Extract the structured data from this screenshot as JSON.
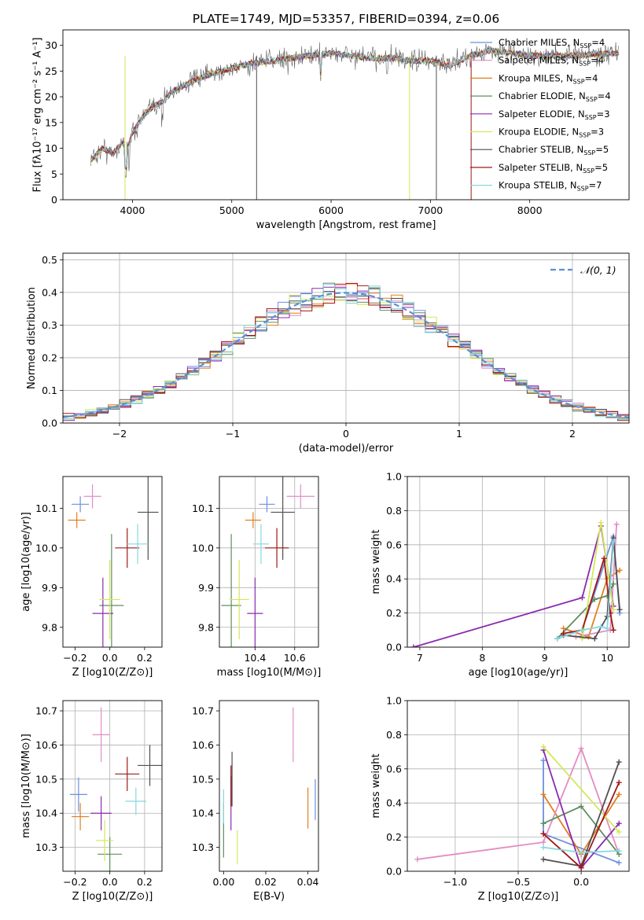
{
  "figure_title": "PLATE=1749, MJD=53357, FIBERID=0394, z=0.06",
  "series_colors": [
    "#6b8fe0",
    "#e07f1f",
    "#e38cc4",
    "#5f8f5f",
    "#8a2bb0",
    "#d3e85a",
    "#4f4f4f",
    "#a01818",
    "#86d8e0"
  ],
  "chart_data": [
    {
      "type": "line",
      "title": "PLATE=1749, MJD=53357, FIBERID=0394, z=0.06",
      "xlabel": "wavelength [Angstrom, rest frame]",
      "ylabel": "Flux [fλ10⁻¹⁷ erg cm⁻² s⁻¹ A⁻¹]",
      "xlim": [
        3300,
        9000
      ],
      "ylim": [
        0,
        33
      ],
      "xticks": [
        "4000",
        "5000",
        "6000",
        "7000",
        "8000"
      ],
      "yticks": [
        "0",
        "5",
        "10",
        "15",
        "20",
        "25",
        "30"
      ],
      "grid": false,
      "legend_position": "right",
      "legend": [
        {
          "label": "Chabrier MILES, N_SSP=4",
          "color": "#6b8fe0"
        },
        {
          "label": "Salpeter MILES, N_SSP=4",
          "color": "#e38cc4"
        },
        {
          "label": "Kroupa MILES, N_SSP=4",
          "color": "#e07f1f"
        },
        {
          "label": "Chabrier ELODIE, N_SSP=4",
          "color": "#5f8f5f"
        },
        {
          "label": "Salpeter ELODIE, N_SSP=3",
          "color": "#8a2bb0"
        },
        {
          "label": "Kroupa ELODIE, N_SSP=3",
          "color": "#d3e85a"
        },
        {
          "label": "Chabrier STELIB, N_SSP=5",
          "color": "#4f4f4f"
        },
        {
          "label": "Salpeter STELIB, N_SSP=5",
          "color": "#a01818"
        },
        {
          "label": "Kroupa STELIB, N_SSP=7",
          "color": "#86d8e0"
        }
      ],
      "spectrum_envelope": {
        "wavelength": [
          3600,
          3700,
          3800,
          3900,
          3950,
          4000,
          4100,
          4200,
          4300,
          4400,
          4500,
          4600,
          4800,
          5000,
          5200,
          5400,
          5600,
          5800,
          6000,
          6200,
          6400,
          6600,
          6800,
          7000,
          7200,
          7400,
          7600,
          8000,
          8400,
          8900
        ],
        "flux": [
          8,
          10,
          9,
          11,
          10,
          13,
          16,
          18,
          19,
          21,
          22,
          23,
          24.5,
          25.5,
          26.5,
          27,
          27.5,
          28,
          28.5,
          28,
          27.5,
          27.5,
          27,
          27,
          26,
          28,
          29,
          28,
          28,
          28.5
        ]
      }
    },
    {
      "type": "bar",
      "xlabel": "(data-model)/error",
      "ylabel": "Normed distribution",
      "xlim": [
        -2.5,
        2.5
      ],
      "ylim": [
        0,
        0.52
      ],
      "xticks": [
        "−2",
        "−1",
        "0",
        "1",
        "2"
      ],
      "yticks": [
        "0.0",
        "0.1",
        "0.2",
        "0.3",
        "0.4",
        "0.5"
      ],
      "grid": true,
      "legend_position": "top-right",
      "legend": [
        {
          "label": "𝒩(0, 1)",
          "color": "#5b8fd8",
          "style": "dashed"
        }
      ],
      "bin_width": 0.1,
      "histogram_description": "step histograms of normalized residuals for each of the 9 fits, following the standard normal curve",
      "gaussian": {
        "mean": 0,
        "sigma": 1
      }
    },
    {
      "type": "scatter",
      "xlabel": "Z [log10(Z/Z⊙)]",
      "ylabel": "age [log10(age/yr)]",
      "xlim": [
        -0.27,
        0.3
      ],
      "ylim": [
        9.75,
        10.18
      ],
      "xticks": [
        "−0.2",
        "0.0",
        "0.2"
      ],
      "yticks": [
        "9.8",
        "9.9",
        "10.0",
        "10.1"
      ],
      "points": [
        {
          "x": -0.17,
          "y": 10.11,
          "xerr": 0.05,
          "yerr": 0.02,
          "color": "#6b8fe0"
        },
        {
          "x": -0.19,
          "y": 10.07,
          "xerr": 0.05,
          "yerr": 0.02,
          "color": "#e07f1f"
        },
        {
          "x": -0.1,
          "y": 10.13,
          "xerr": 0.05,
          "yerr": 0.03,
          "color": "#e38cc4"
        },
        {
          "x": 0.01,
          "y": 9.855,
          "xerr": 0.07,
          "yerr": 0.18,
          "color": "#5f8f5f"
        },
        {
          "x": -0.04,
          "y": 9.835,
          "xerr": 0.06,
          "yerr": 0.09,
          "color": "#8a2bb0"
        },
        {
          "x": 0.0,
          "y": 9.87,
          "xerr": 0.06,
          "yerr": 0.1,
          "color": "#d3e85a"
        },
        {
          "x": 0.22,
          "y": 10.09,
          "xerr": 0.06,
          "yerr": 0.12,
          "color": "#4f4f4f"
        },
        {
          "x": 0.1,
          "y": 10.0,
          "xerr": 0.07,
          "yerr": 0.05,
          "color": "#a01818"
        },
        {
          "x": 0.16,
          "y": 10.01,
          "xerr": 0.06,
          "yerr": 0.05,
          "color": "#86d8e0"
        }
      ]
    },
    {
      "type": "scatter",
      "xlabel": "mass [log10(M/M⊙)]",
      "ylabel": "",
      "xlim": [
        10.22,
        10.72
      ],
      "ylim": [
        9.75,
        10.18
      ],
      "xticks": [
        "10.4",
        "10.6"
      ],
      "yticks": [
        "9.8",
        "9.9",
        "10.0",
        "10.1"
      ],
      "points": [
        {
          "x": 10.46,
          "y": 10.11,
          "xerr": 0.04,
          "yerr": 0.02,
          "color": "#6b8fe0"
        },
        {
          "x": 10.39,
          "y": 10.07,
          "xerr": 0.04,
          "yerr": 0.02,
          "color": "#e07f1f"
        },
        {
          "x": 10.63,
          "y": 10.13,
          "xerr": 0.07,
          "yerr": 0.03,
          "color": "#e38cc4"
        },
        {
          "x": 10.28,
          "y": 9.855,
          "xerr": 0.05,
          "yerr": 0.18,
          "color": "#5f8f5f"
        },
        {
          "x": 10.4,
          "y": 9.835,
          "xerr": 0.04,
          "yerr": 0.09,
          "color": "#8a2bb0"
        },
        {
          "x": 10.32,
          "y": 9.87,
          "xerr": 0.05,
          "yerr": 0.1,
          "color": "#d3e85a"
        },
        {
          "x": 10.54,
          "y": 10.09,
          "xerr": 0.06,
          "yerr": 0.12,
          "color": "#4f4f4f"
        },
        {
          "x": 10.51,
          "y": 10.0,
          "xerr": 0.06,
          "yerr": 0.05,
          "color": "#a01818"
        },
        {
          "x": 10.43,
          "y": 10.01,
          "xerr": 0.04,
          "yerr": 0.05,
          "color": "#86d8e0"
        }
      ]
    },
    {
      "type": "line",
      "xlabel": "age [log10(age/yr)]",
      "ylabel": "mass weight",
      "xlim": [
        6.8,
        10.35
      ],
      "ylim": [
        0,
        1
      ],
      "xticks": [
        "7",
        "8",
        "9",
        "10"
      ],
      "yticks": [
        "0.0",
        "0.2",
        "0.4",
        "0.6",
        "0.8",
        "1.0"
      ],
      "grid": true,
      "series": [
        {
          "color": "#6b8fe0",
          "x": [
            9.2,
            9.6,
            10.1,
            10.2
          ],
          "y": [
            0.05,
            0.1,
            0.65,
            0.2
          ]
        },
        {
          "color": "#e07f1f",
          "x": [
            9.3,
            9.7,
            10.0,
            10.2
          ],
          "y": [
            0.11,
            0.06,
            0.4,
            0.45
          ]
        },
        {
          "color": "#e38cc4",
          "x": [
            9.5,
            10.05,
            10.15
          ],
          "y": [
            0.06,
            0.1,
            0.72
          ]
        },
        {
          "color": "#5f8f5f",
          "x": [
            9.2,
            9.8,
            10.0,
            10.1
          ],
          "y": [
            0.05,
            0.28,
            0.3,
            0.37
          ]
        },
        {
          "color": "#8a2bb0",
          "x": [
            6.9,
            9.6,
            9.9,
            10.1
          ],
          "y": [
            0.0,
            0.29,
            0.71,
            0.24
          ]
        },
        {
          "color": "#d3e85a",
          "x": [
            9.6,
            9.9,
            10.1
          ],
          "y": [
            0.05,
            0.73,
            0.22
          ]
        },
        {
          "color": "#4f4f4f",
          "x": [
            9.3,
            9.8,
            10.0,
            10.1,
            10.2
          ],
          "y": [
            0.07,
            0.05,
            0.18,
            0.64,
            0.22
          ]
        },
        {
          "color": "#a01818",
          "x": [
            9.3,
            9.6,
            9.95,
            10.05,
            10.1
          ],
          "y": [
            0.08,
            0.1,
            0.52,
            0.2,
            0.1
          ]
        },
        {
          "color": "#86d8e0",
          "x": [
            9.2,
            9.6,
            9.9,
            10.0,
            10.1
          ],
          "y": [
            0.05,
            0.1,
            0.12,
            0.11,
            0.62
          ]
        }
      ]
    },
    {
      "type": "scatter",
      "xlabel": "Z [log10(Z/Z⊙)]",
      "ylabel": "mass [log10(M/M⊙)]",
      "xlim": [
        -0.27,
        0.3
      ],
      "ylim": [
        10.23,
        10.73
      ],
      "xticks": [
        "−0.2",
        "0.0",
        "0.2"
      ],
      "yticks": [
        "10.3",
        "10.4",
        "10.5",
        "10.6",
        "10.7"
      ],
      "points": [
        {
          "x": -0.18,
          "y": 10.455,
          "xerr": 0.05,
          "yerr": 0.05,
          "color": "#6b8fe0"
        },
        {
          "x": -0.17,
          "y": 10.39,
          "xerr": 0.05,
          "yerr": 0.04,
          "color": "#e07f1f"
        },
        {
          "x": -0.05,
          "y": 10.63,
          "xerr": 0.05,
          "yerr": 0.08,
          "color": "#e38cc4"
        },
        {
          "x": 0.0,
          "y": 10.28,
          "xerr": 0.07,
          "yerr": 0.05,
          "color": "#5f8f5f"
        },
        {
          "x": -0.05,
          "y": 10.4,
          "xerr": 0.06,
          "yerr": 0.05,
          "color": "#8a2bb0"
        },
        {
          "x": -0.03,
          "y": 10.32,
          "xerr": 0.05,
          "yerr": 0.06,
          "color": "#d3e85a"
        },
        {
          "x": 0.23,
          "y": 10.54,
          "xerr": 0.07,
          "yerr": 0.06,
          "color": "#4f4f4f"
        },
        {
          "x": 0.1,
          "y": 10.515,
          "xerr": 0.07,
          "yerr": 0.05,
          "color": "#a01818"
        },
        {
          "x": 0.15,
          "y": 10.435,
          "xerr": 0.06,
          "yerr": 0.04,
          "color": "#86d8e0"
        }
      ]
    },
    {
      "type": "scatter",
      "xlabel": "E(B-V)",
      "ylabel": "",
      "xlim": [
        -0.002,
        0.045
      ],
      "ylim": [
        10.23,
        10.73
      ],
      "xticks": [
        "0.00",
        "0.02",
        "0.04"
      ],
      "yticks": [
        "10.3",
        "10.4",
        "10.5",
        "10.6",
        "10.7"
      ],
      "points": [
        {
          "x": 0.0435,
          "y": 10.44,
          "xerr": 0.0,
          "yerr": 0.06,
          "color": "#6b8fe0"
        },
        {
          "x": 0.04,
          "y": 10.415,
          "xerr": 0.0,
          "yerr": 0.06,
          "color": "#e07f1f"
        },
        {
          "x": 0.033,
          "y": 10.63,
          "xerr": 0.0,
          "yerr": 0.08,
          "color": "#e38cc4"
        },
        {
          "x": 0.0,
          "y": 10.35,
          "xerr": 0.0,
          "yerr": 0.08,
          "color": "#5f8f5f"
        },
        {
          "x": 0.0035,
          "y": 10.43,
          "xerr": 0.0,
          "yerr": 0.08,
          "color": "#8a2bb0"
        },
        {
          "x": 0.0065,
          "y": 10.3,
          "xerr": 0.0,
          "yerr": 0.05,
          "color": "#d3e85a"
        },
        {
          "x": 0.004,
          "y": 10.5,
          "xerr": 0.0,
          "yerr": 0.08,
          "color": "#4f4f4f"
        },
        {
          "x": 0.0035,
          "y": 10.48,
          "xerr": 0.0,
          "yerr": 0.06,
          "color": "#a01818"
        },
        {
          "x": 0.0,
          "y": 10.42,
          "xerr": 0.0,
          "yerr": 0.05,
          "color": "#86d8e0"
        }
      ]
    },
    {
      "type": "line",
      "xlabel": "Z [log10(Z/Z⊙)]",
      "ylabel": "mass weight",
      "xlim": [
        -1.38,
        0.38
      ],
      "ylim": [
        0,
        1
      ],
      "xticks": [
        "−1.0",
        "−0.5",
        "0.0"
      ],
      "yticks": [
        "0.0",
        "0.2",
        "0.4",
        "0.6",
        "0.8",
        "1.0"
      ],
      "grid": true,
      "series": [
        {
          "color": "#6b8fe0",
          "x": [
            -0.3,
            -0.3,
            0.3
          ],
          "y": [
            0.65,
            0.22,
            0.05
          ]
        },
        {
          "color": "#e07f1f",
          "x": [
            -0.3,
            0.0,
            0.3
          ],
          "y": [
            0.45,
            0.1,
            0.45
          ]
        },
        {
          "color": "#e38cc4",
          "x": [
            -1.3,
            -0.3,
            0.0,
            0.3
          ],
          "y": [
            0.07,
            0.17,
            0.72,
            0.1
          ]
        },
        {
          "color": "#5f8f5f",
          "x": [
            -0.3,
            0.0,
            0.3
          ],
          "y": [
            0.28,
            0.38,
            0.1
          ]
        },
        {
          "color": "#8a2bb0",
          "x": [
            -0.3,
            0.0,
            0.3
          ],
          "y": [
            0.71,
            0.02,
            0.28
          ]
        },
        {
          "color": "#d3e85a",
          "x": [
            -0.3,
            0.3
          ],
          "y": [
            0.73,
            0.23
          ]
        },
        {
          "color": "#4f4f4f",
          "x": [
            -0.3,
            0.0,
            0.3
          ],
          "y": [
            0.07,
            0.03,
            0.64
          ]
        },
        {
          "color": "#a01818",
          "x": [
            -0.3,
            0.0,
            0.3
          ],
          "y": [
            0.22,
            0.02,
            0.52
          ]
        },
        {
          "color": "#86d8e0",
          "x": [
            -0.3,
            0.0,
            0.3
          ],
          "y": [
            0.14,
            0.11,
            0.12
          ]
        }
      ]
    }
  ]
}
